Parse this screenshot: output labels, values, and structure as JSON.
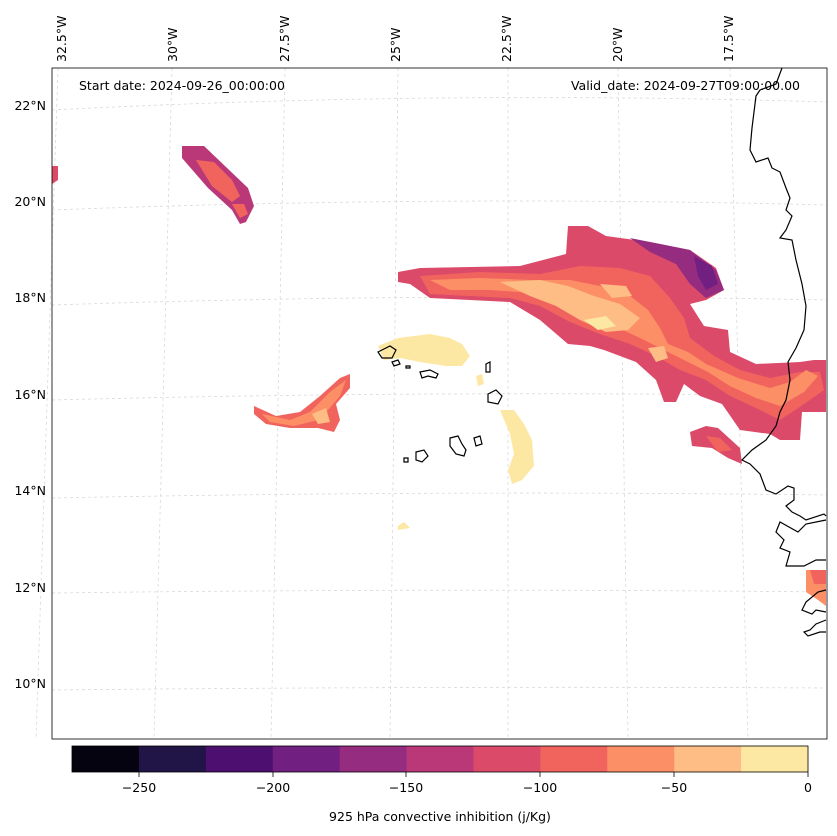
{
  "map": {
    "start_date": "Start date: 2024-09-26_00:00:00",
    "valid_date": "Valid_date: 2024-09-27T09:00:00.00",
    "lon_labels": [
      "32.5°W",
      "30°W",
      "27.5°W",
      "25°W",
      "22.5°W",
      "20°W",
      "17.5°W"
    ],
    "lat_labels": [
      "22°N",
      "20°N",
      "18°N",
      "16°N",
      "14°N",
      "12°N",
      "10°N"
    ]
  },
  "colorbar": {
    "label": "925 hPa convective inhibition (j/Kg)",
    "tick_labels": [
      "−250",
      "−200",
      "−150",
      "−100",
      "−50",
      "0"
    ],
    "colors": [
      "#05030f",
      "#211447",
      "#4d0f70",
      "#711f81",
      "#952c80",
      "#ba3878",
      "#dc4a6a",
      "#f1645e",
      "#fd8f66",
      "#fdbd85",
      "#fde8a3"
    ]
  }
}
